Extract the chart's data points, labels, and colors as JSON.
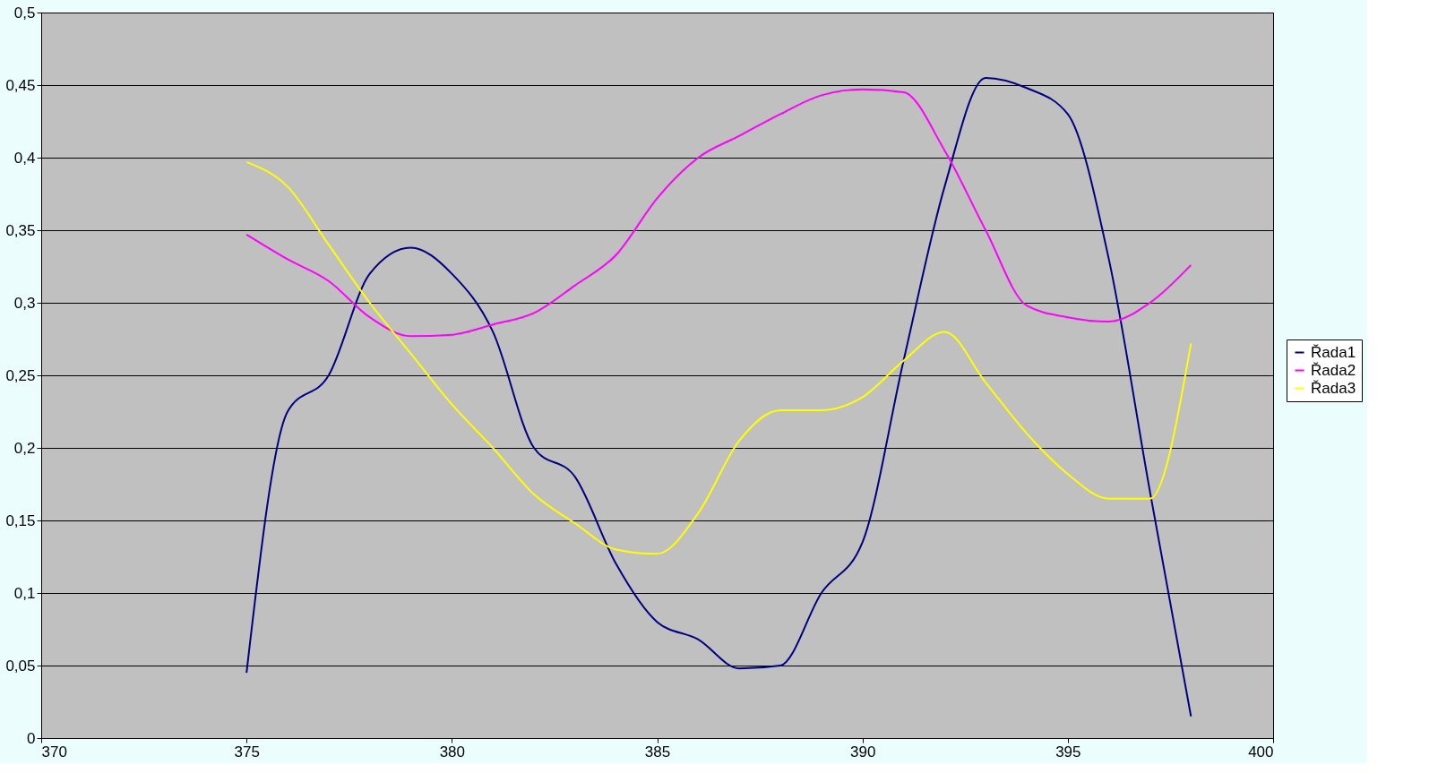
{
  "chart_data": {
    "type": "line",
    "x": [
      375,
      376,
      377,
      378,
      379,
      380,
      381,
      382,
      383,
      384,
      385,
      386,
      387,
      388,
      389,
      390,
      391,
      392,
      393,
      394,
      395,
      396,
      397,
      398
    ],
    "series": [
      {
        "name": "Řada1",
        "color": "#000080",
        "values": [
          0.045,
          0.225,
          0.25,
          0.32,
          0.338,
          0.32,
          0.28,
          0.2,
          0.18,
          0.12,
          0.08,
          0.068,
          0.048,
          0.05,
          0.1,
          0.135,
          0.26,
          0.38,
          0.455,
          0.448,
          0.43,
          0.33,
          0.17,
          0.015
        ]
      },
      {
        "name": "Řada2",
        "color": "#ff00ff",
        "values": [
          0.347,
          0.33,
          0.315,
          0.29,
          0.277,
          0.278,
          0.285,
          0.293,
          0.312,
          0.333,
          0.372,
          0.4,
          0.415,
          0.43,
          0.443,
          0.447,
          0.445,
          0.405,
          0.35,
          0.298,
          0.29,
          0.287,
          0.3,
          0.326
        ]
      },
      {
        "name": "Řada3",
        "color": "#ffff00",
        "values": [
          0.397,
          0.38,
          0.34,
          0.3,
          0.265,
          0.23,
          0.2,
          0.168,
          0.148,
          0.13,
          0.127,
          0.155,
          0.205,
          0.226,
          0.226,
          0.235,
          0.26,
          0.28,
          0.245,
          0.21,
          0.182,
          0.165,
          0.165,
          0.272
        ]
      }
    ],
    "xlim": [
      370,
      400
    ],
    "xticks": [
      370,
      375,
      380,
      385,
      390,
      395,
      400
    ],
    "ylim": [
      0,
      0.5
    ],
    "yticks": [
      0,
      {
        "value": 0.05,
        "label": "0,05"
      },
      {
        "value": 0.1,
        "label": "0,1"
      },
      {
        "value": 0.15,
        "label": "0,15"
      },
      {
        "value": 0.2,
        "label": "0,2"
      },
      {
        "value": 0.25,
        "label": "0,25"
      },
      {
        "value": 0.3,
        "label": "0,3"
      },
      {
        "value": 0.35,
        "label": "0,35"
      },
      {
        "value": 0.4,
        "label": "0,4"
      },
      {
        "value": 0.45,
        "label": "0,45"
      },
      {
        "value": 0.5,
        "label": "0,5"
      }
    ],
    "grid": "y",
    "legend": "right",
    "marker": "none",
    "line_style": "solid"
  }
}
